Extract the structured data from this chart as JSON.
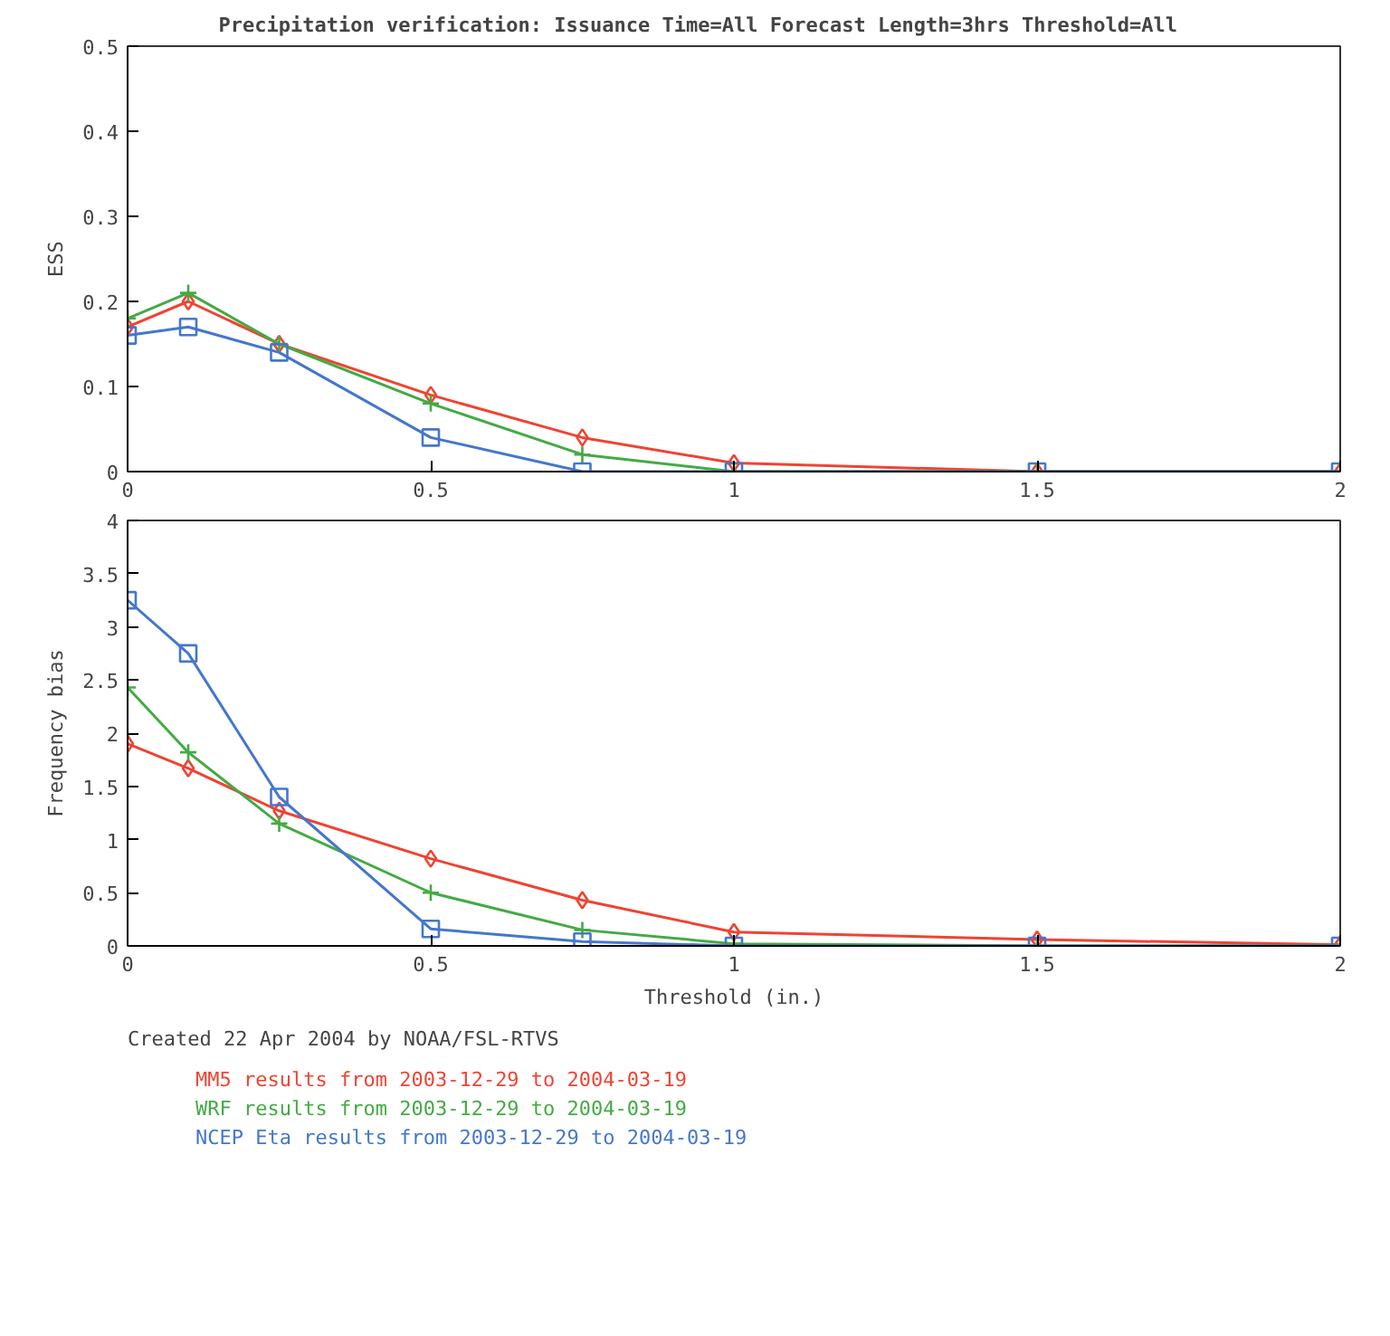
{
  "chart_data": [
    {
      "type": "line",
      "title": "Precipitation verification:   Issuance Time=All   Forecast Length=3hrs   Threshold=All",
      "ylabel": "ESS",
      "x": [
        0,
        0.1,
        0.25,
        0.5,
        0.75,
        1,
        1.5,
        2
      ],
      "xlim": [
        0,
        2
      ],
      "xticks": [
        0,
        0.5,
        1,
        1.5,
        2
      ],
      "ylim": [
        0,
        0.5
      ],
      "yticks": [
        0,
        0.1,
        0.2,
        0.3,
        0.4,
        0.5
      ],
      "grid": false,
      "series": [
        {
          "color": "#ee4433",
          "marker": "diamond",
          "values": [
            0.17,
            0.2,
            0.15,
            0.09,
            0.04,
            0.01,
            0,
            0
          ]
        },
        {
          "color": "#44aa44",
          "marker": "cross",
          "values": [
            0.18,
            0.21,
            0.15,
            0.08,
            0.02,
            0,
            0,
            0
          ]
        },
        {
          "color": "#4477cc",
          "marker": "square",
          "values": [
            0.16,
            0.17,
            0.14,
            0.04,
            0,
            0,
            0,
            0
          ]
        }
      ]
    },
    {
      "type": "line",
      "ylabel": "Frequency bias",
      "xlabel": "Threshold (in.)",
      "annotations": [
        "Created 22 Apr 2004 by NOAA/FSL-RTVS"
      ],
      "x": [
        0,
        0.1,
        0.25,
        0.5,
        0.75,
        1,
        1.5,
        2
      ],
      "xlim": [
        0,
        2
      ],
      "xticks": [
        0,
        0.5,
        1,
        1.5,
        2
      ],
      "ylim": [
        0,
        4
      ],
      "yticks": [
        0,
        0.5,
        1,
        1.5,
        2,
        2.5,
        3,
        3.5,
        4
      ],
      "grid": false,
      "legend": "bottom",
      "series": [
        {
          "name": "MM5 results from 2003-12-29 to 2004-03-19",
          "color": "#ee4433",
          "marker": "diamond",
          "values": [
            1.9,
            1.67,
            1.27,
            0.82,
            0.43,
            0.13,
            0.06,
            0.01
          ]
        },
        {
          "name": "WRF results from 2003-12-29 to 2004-03-19",
          "color": "#44aa44",
          "marker": "cross",
          "values": [
            2.43,
            1.82,
            1.15,
            0.5,
            0.15,
            0.02,
            0,
            0
          ]
        },
        {
          "name": "NCEP Eta results from 2003-12-29 to 2004-03-19",
          "color": "#4477cc",
          "marker": "square",
          "values": [
            3.25,
            2.75,
            1.4,
            0.16,
            0.04,
            0,
            0,
            0
          ]
        }
      ]
    }
  ]
}
